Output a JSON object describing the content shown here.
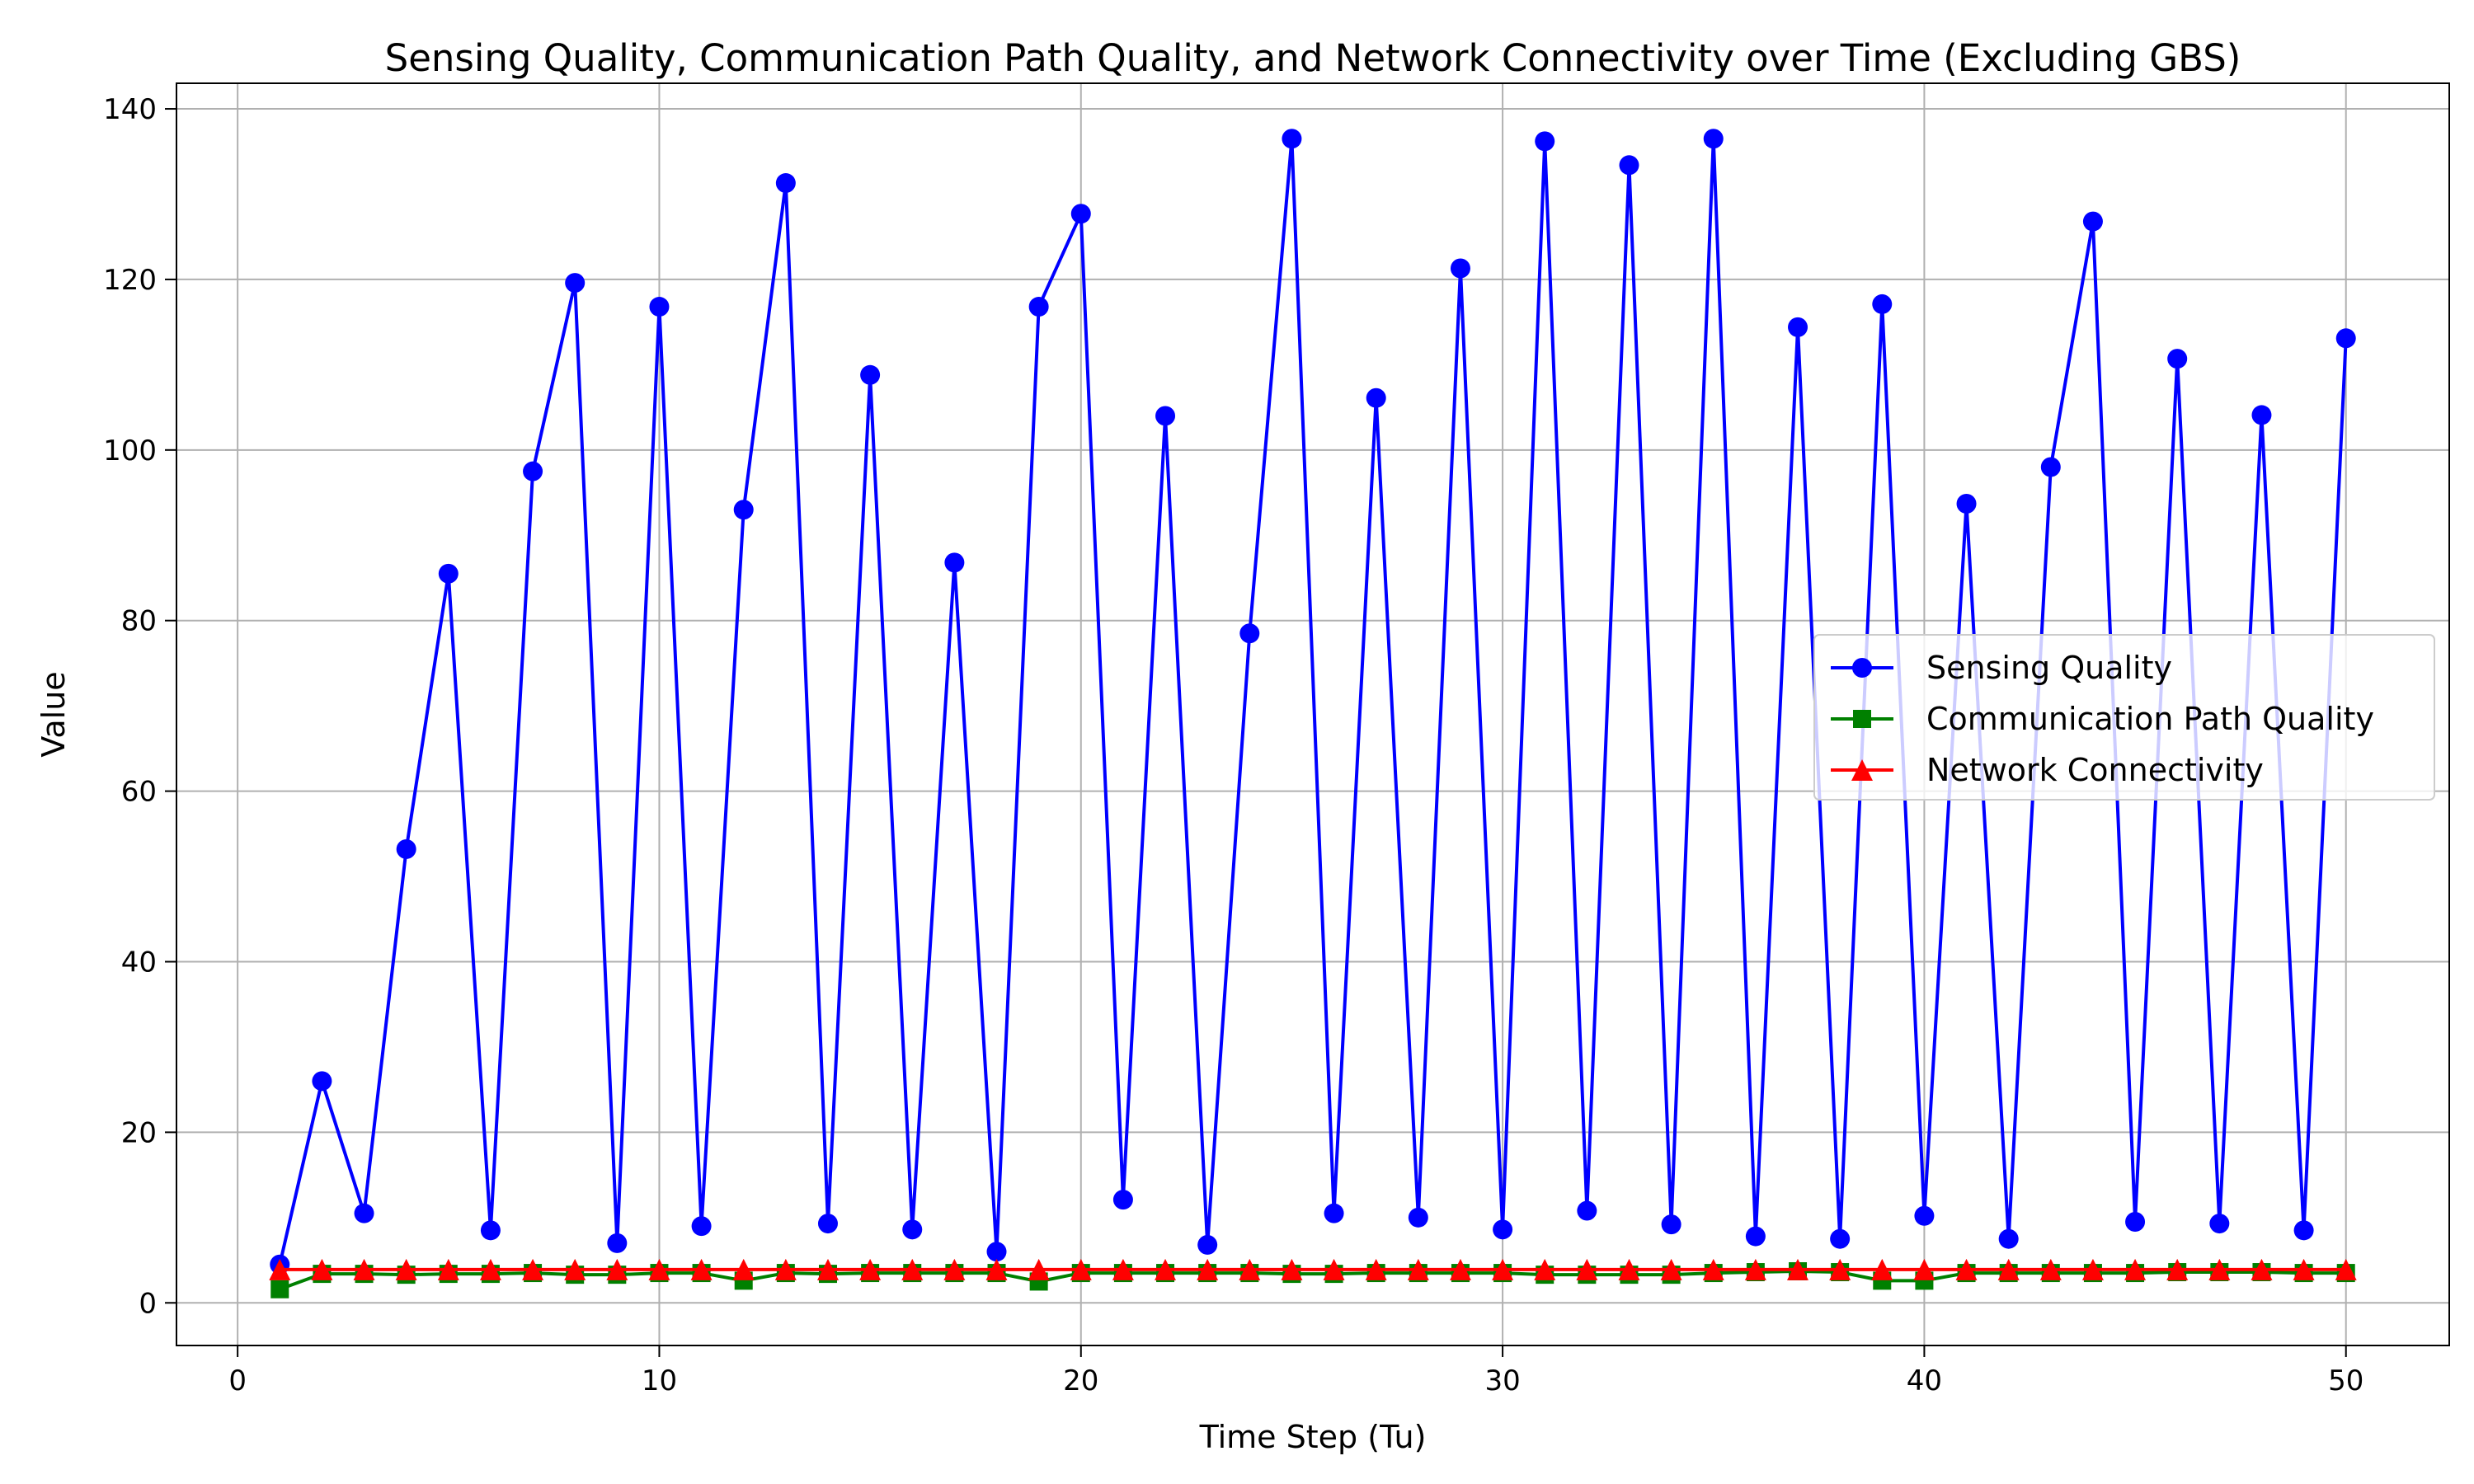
{
  "chart_data": {
    "type": "line",
    "title": "Sensing Quality, Communication Path Quality, and Network Connectivity over Time (Excluding GBS)",
    "xlabel": "Time Step (Tu)",
    "ylabel": "Value",
    "xlim": [
      -1.45,
      52.45
    ],
    "ylim": [
      -5,
      143
    ],
    "xticks": [
      0,
      10,
      20,
      30,
      40,
      50
    ],
    "yticks": [
      0,
      20,
      40,
      60,
      80,
      100,
      120,
      140
    ],
    "grid": true,
    "legend_position": "center-right",
    "x": [
      1,
      2,
      3,
      4,
      5,
      6,
      7,
      8,
      9,
      10,
      11,
      12,
      13,
      14,
      15,
      16,
      17,
      18,
      19,
      20,
      21,
      22,
      23,
      24,
      25,
      26,
      27,
      28,
      29,
      30,
      31,
      32,
      33,
      34,
      35,
      36,
      37,
      38,
      39,
      40,
      41,
      42,
      43,
      44,
      45,
      46,
      47,
      48,
      49,
      50
    ],
    "series": [
      {
        "name": "Sensing Quality",
        "color": "#0000ff",
        "marker": "circle",
        "values": [
          4.5,
          26,
          10.5,
          53.2,
          85.5,
          8.5,
          97.5,
          119.6,
          7,
          116.8,
          9,
          93,
          131.3,
          9.3,
          108.8,
          8.6,
          86.8,
          6,
          116.8,
          127.7,
          12.1,
          104,
          6.8,
          78.5,
          136.5,
          10.5,
          106.1,
          10,
          121.3,
          8.6,
          136.2,
          10.8,
          133.4,
          9.2,
          136.5,
          7.8,
          114.4,
          7.5,
          117.1,
          10.2,
          93.7,
          7.5,
          98,
          126.8,
          9.5,
          110.7,
          9.3,
          104.1,
          8.5,
          113.1
        ]
      },
      {
        "name": "Communication Path Quality",
        "color": "#008000",
        "marker": "square",
        "values": [
          1.6,
          3.4,
          3.4,
          3.3,
          3.4,
          3.4,
          3.5,
          3.3,
          3.3,
          3.5,
          3.5,
          2.6,
          3.5,
          3.4,
          3.5,
          3.5,
          3.5,
          3.5,
          2.5,
          3.5,
          3.5,
          3.5,
          3.5,
          3.5,
          3.4,
          3.4,
          3.5,
          3.5,
          3.5,
          3.5,
          3.3,
          3.3,
          3.3,
          3.3,
          3.5,
          3.6,
          3.7,
          3.6,
          2.6,
          2.6,
          3.5,
          3.5,
          3.5,
          3.5,
          3.5,
          3.6,
          3.6,
          3.6,
          3.5,
          3.5
        ]
      },
      {
        "name": "Network Connectivity",
        "color": "#ff0000",
        "marker": "triangle",
        "values": [
          3.9,
          3.9,
          3.9,
          3.9,
          3.9,
          3.9,
          3.9,
          3.9,
          3.9,
          3.9,
          3.9,
          3.9,
          3.9,
          3.9,
          3.9,
          3.9,
          3.9,
          3.9,
          3.9,
          3.9,
          3.9,
          3.9,
          3.9,
          3.9,
          3.9,
          3.9,
          3.9,
          3.9,
          3.9,
          3.9,
          3.9,
          3.9,
          3.9,
          3.9,
          3.9,
          3.9,
          3.9,
          3.9,
          3.9,
          3.9,
          3.9,
          3.9,
          3.9,
          3.9,
          3.9,
          3.9,
          3.9,
          3.9,
          3.9,
          3.9
        ]
      }
    ]
  }
}
